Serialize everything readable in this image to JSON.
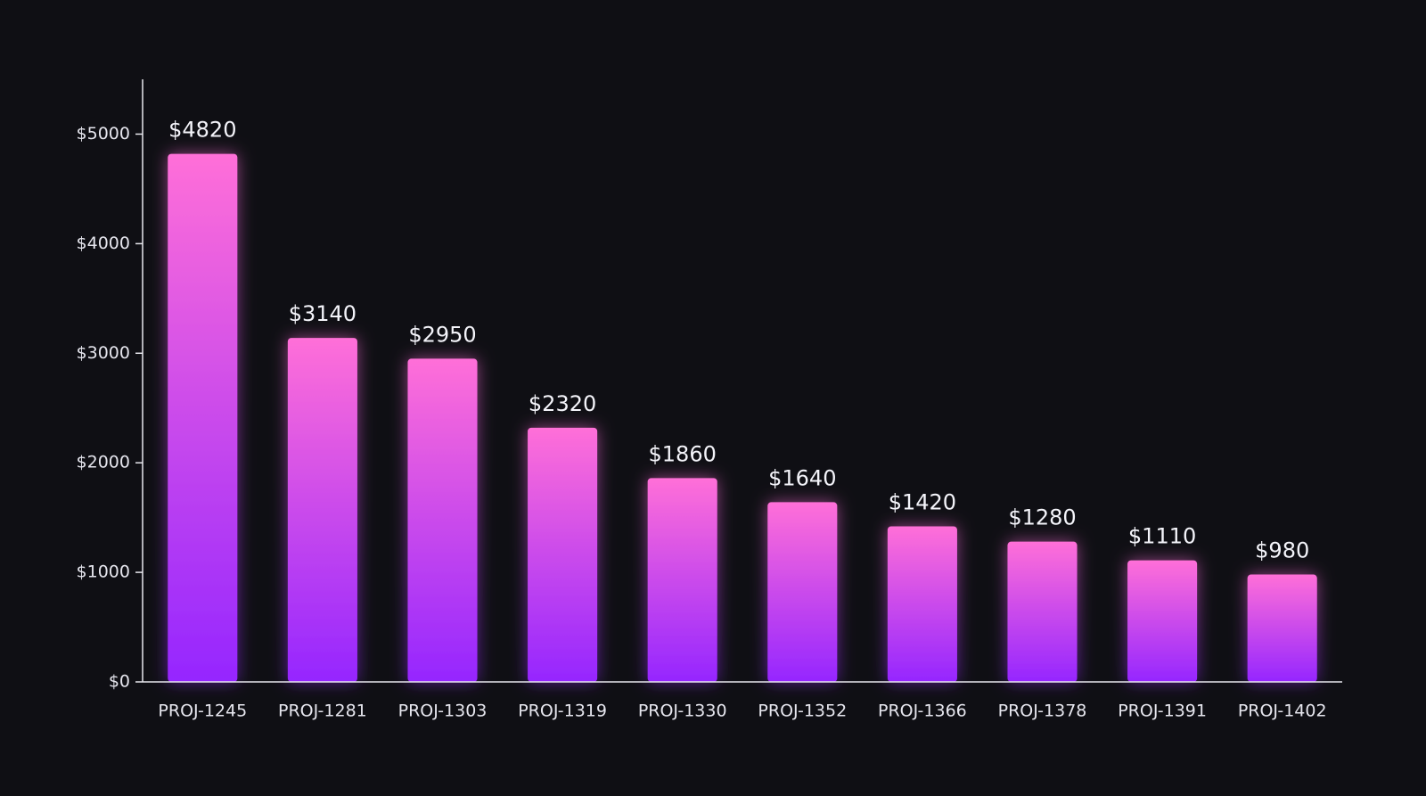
{
  "chart_data": {
    "type": "bar",
    "categories": [
      "PROJ-1245",
      "PROJ-1281",
      "PROJ-1303",
      "PROJ-1319",
      "PROJ-1330",
      "PROJ-1352",
      "PROJ-1366",
      "PROJ-1378",
      "PROJ-1391",
      "PROJ-1402"
    ],
    "values": [
      4820,
      3140,
      2950,
      2320,
      1860,
      1640,
      1420,
      1280,
      1110,
      980
    ],
    "value_labels": [
      "$4820",
      "$3140",
      "$2950",
      "$2320",
      "$1860",
      "$1640",
      "$1420",
      "$1280",
      "$1110",
      "$980"
    ],
    "gradient": [
      "#ff6fd8",
      "#9526ff"
    ],
    "ylim": [
      0,
      5500
    ],
    "yticks": [
      {
        "value": 0,
        "label": "$0"
      },
      {
        "value": 1000,
        "label": "$1000"
      },
      {
        "value": 2000,
        "label": "$2000"
      },
      {
        "value": 3000,
        "label": "$3000"
      },
      {
        "value": 4000,
        "label": "$4000"
      },
      {
        "value": 5000,
        "label": "$5000"
      }
    ]
  }
}
